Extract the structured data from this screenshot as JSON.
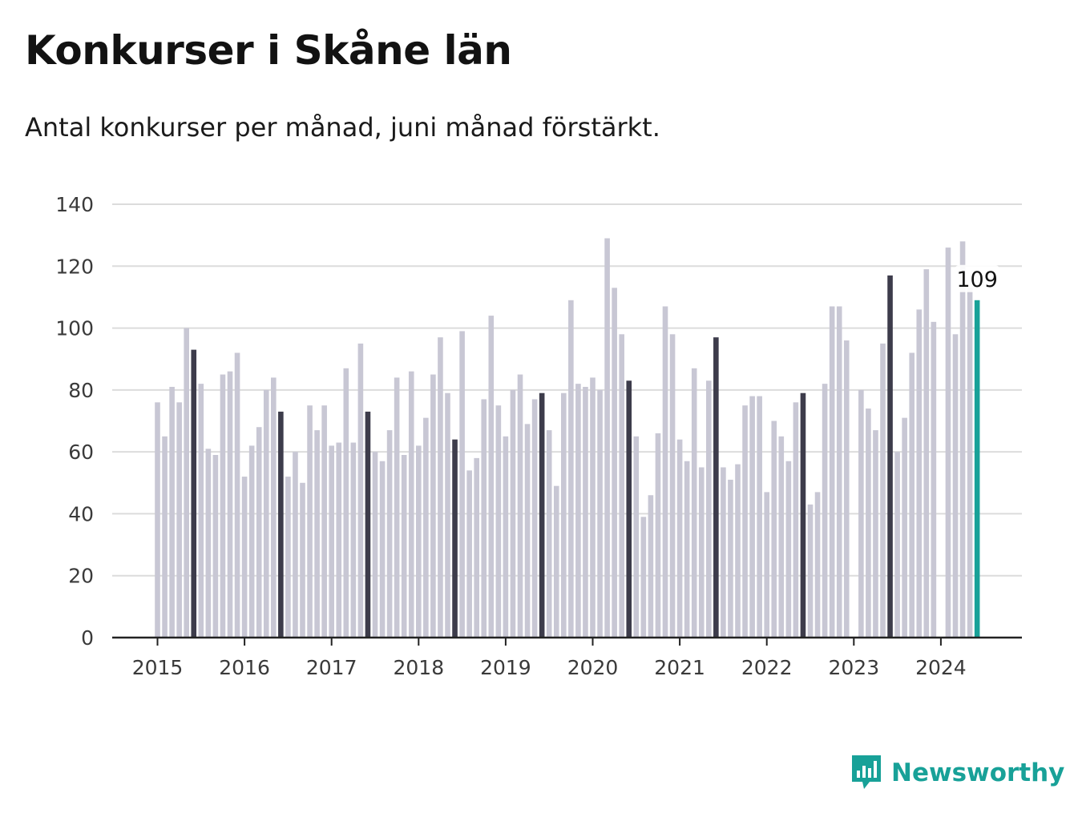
{
  "title": "Konkurser i Skåne län",
  "subtitle": "Antal konkurser per månad, juni månad förstärkt.",
  "brand": {
    "name": "Newsworthy",
    "icon": "newsworthy-logo-icon"
  },
  "colors": {
    "bar": "#c8c7d4",
    "highlight": "#3d3c4b",
    "latest": "#18a198",
    "grid": "#dcdcdc",
    "axis": "#222222",
    "brand": "#18a198"
  },
  "chart_data": {
    "type": "bar",
    "title": "Konkurser i Skåne län",
    "ylim": [
      0,
      140
    ],
    "yticks": [
      0,
      20,
      40,
      60,
      80,
      100,
      120,
      140
    ],
    "xticks": [
      "2015",
      "2016",
      "2017",
      "2018",
      "2019",
      "2020",
      "2021",
      "2022",
      "2023",
      "2024"
    ],
    "grid": true,
    "start": "2015-01",
    "highlight_month": "juni",
    "annotation": {
      "label": "109",
      "month": "2024-06"
    },
    "values": [
      76,
      65,
      81,
      76,
      100,
      93,
      82,
      61,
      59,
      85,
      86,
      92,
      52,
      62,
      68,
      80,
      84,
      73,
      52,
      60,
      50,
      75,
      67,
      75,
      62,
      63,
      87,
      63,
      95,
      73,
      60,
      57,
      67,
      84,
      59,
      86,
      62,
      71,
      85,
      97,
      79,
      64,
      99,
      54,
      58,
      77,
      104,
      75,
      65,
      80,
      85,
      69,
      77,
      79,
      67,
      49,
      79,
      109,
      82,
      81,
      84,
      80,
      129,
      113,
      98,
      83,
      65,
      39,
      46,
      66,
      107,
      98,
      64,
      57,
      87,
      55,
      83,
      97,
      55,
      51,
      56,
      75,
      78,
      78,
      47,
      70,
      65,
      57,
      76,
      79,
      43,
      47,
      82,
      107,
      107,
      96,
      0,
      80,
      74,
      67,
      95,
      117,
      60,
      71,
      92,
      106,
      119,
      102,
      0,
      126,
      98,
      128,
      113,
      109
    ]
  }
}
